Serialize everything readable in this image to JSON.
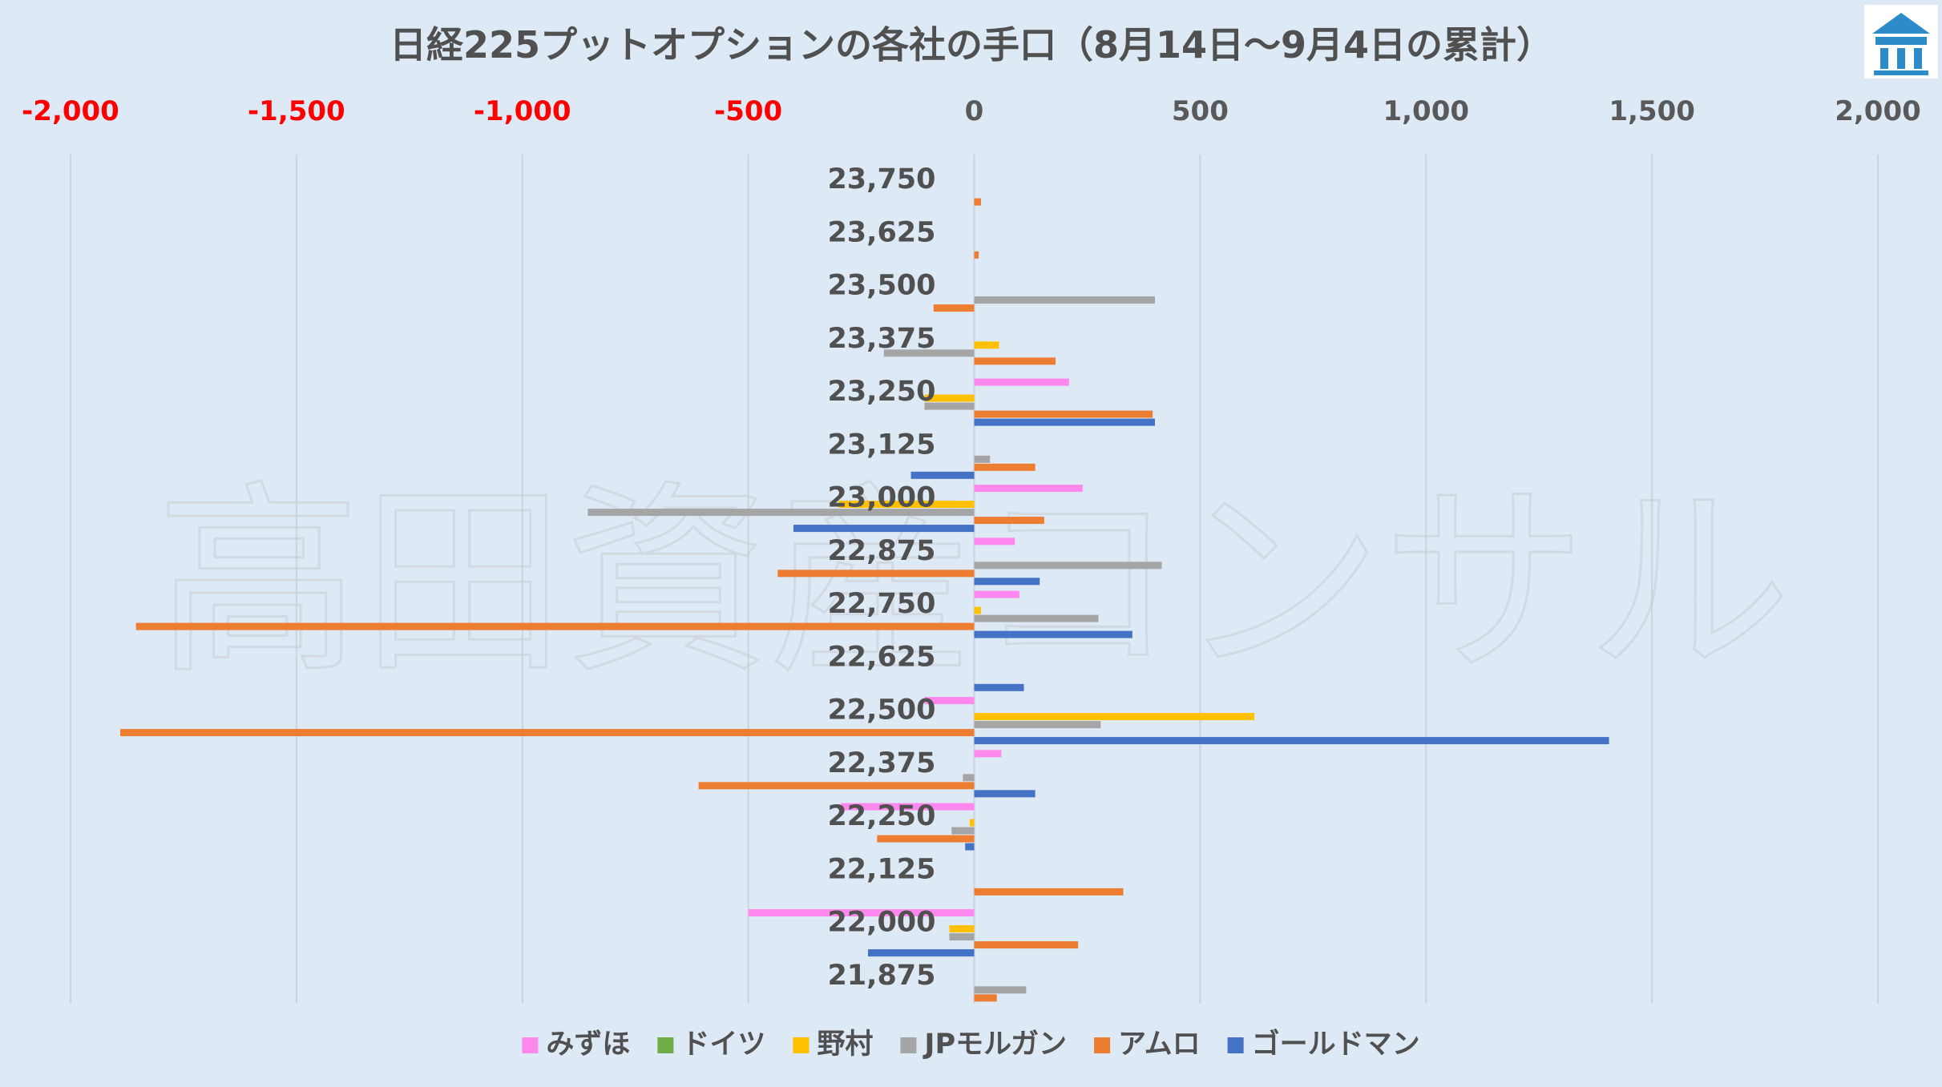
{
  "chart_data": {
    "type": "bar",
    "orientation": "horizontal",
    "title": "日経225プットオプションの各社の手口（8月14日～9月4日の累計）",
    "watermark": "高田資産コンサル",
    "logo_icon": "building-logo-icon",
    "xlim": [
      -2000,
      2000
    ],
    "xticks": [
      -2000,
      -1500,
      -1000,
      -500,
      0,
      500,
      1000,
      1500,
      2000
    ],
    "xtick_labels": [
      "-2,000",
      "-1,500",
      "-1,000",
      "-500",
      "0",
      "500",
      "1,000",
      "1,500",
      "2,000"
    ],
    "negative_tick_color": "#ff0000",
    "positive_tick_color": "#595959",
    "grid": true,
    "legend_position": "bottom",
    "categories": [
      "23,750",
      "23,625",
      "23,500",
      "23,375",
      "23,250",
      "23,125",
      "23,000",
      "22,875",
      "22,750",
      "22,625",
      "22,500",
      "22,375",
      "22,250",
      "22,125",
      "22,000",
      "21,875"
    ],
    "series": [
      {
        "name": "みずほ",
        "color": "#ff88ee",
        "values": [
          0,
          0,
          0,
          0,
          210,
          0,
          240,
          90,
          100,
          0,
          -110,
          60,
          -295,
          0,
          -500,
          0
        ]
      },
      {
        "name": "ドイツ",
        "color": "#70ad47",
        "values": [
          0,
          0,
          0,
          0,
          0,
          0,
          0,
          0,
          0,
          0,
          0,
          0,
          0,
          0,
          0,
          0
        ]
      },
      {
        "name": "野村",
        "color": "#ffc000",
        "values": [
          0,
          0,
          0,
          55,
          -110,
          0,
          -300,
          0,
          15,
          0,
          620,
          0,
          -10,
          0,
          -55,
          0
        ]
      },
      {
        "name": "JPモルガン",
        "color": "#a5a5a5",
        "values": [
          0,
          0,
          400,
          -200,
          -110,
          35,
          -855,
          415,
          275,
          0,
          280,
          -25,
          -50,
          0,
          -55,
          115
        ]
      },
      {
        "name": "アムロ",
        "color": "#ed7d31",
        "values": [
          15,
          10,
          -90,
          180,
          395,
          135,
          155,
          -435,
          -1855,
          0,
          -1890,
          -610,
          -215,
          330,
          230,
          50
        ]
      },
      {
        "name": "ゴールドマン",
        "color": "#4472c4",
        "values": [
          0,
          0,
          0,
          0,
          400,
          -140,
          -400,
          145,
          350,
          110,
          1405,
          135,
          -20,
          0,
          -235,
          0
        ]
      }
    ]
  }
}
